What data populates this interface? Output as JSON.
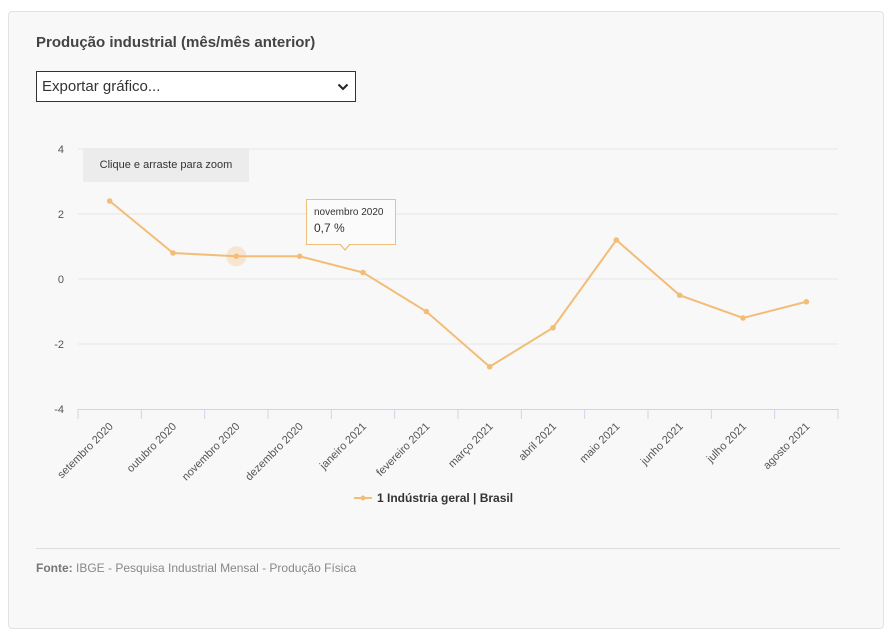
{
  "header": {
    "title": "Produção industrial (mês/mês anterior)"
  },
  "export": {
    "label": "Exportar gráfico..."
  },
  "zoom_hint": "Clique e arraste para zoom",
  "tooltip": {
    "month": "novembro 2020",
    "value": "0,7 %"
  },
  "legend": {
    "label": "1 Indústria geral | Brasil"
  },
  "footer": {
    "source_label": "Fonte:",
    "source_text": "IBGE - Pesquisa Industrial Mensal - Produção Física"
  },
  "colors": {
    "series": "#f2bd77",
    "grid": "#e6e6e6",
    "axis": "#ccd6eb"
  },
  "chart_data": {
    "type": "line",
    "title": "Produção industrial (mês/mês anterior)",
    "xlabel": "",
    "ylabel": "",
    "ylim": [
      -4,
      4
    ],
    "yticks": [
      4,
      2,
      0,
      -2,
      -4
    ],
    "grid": true,
    "legend_position": "bottom",
    "categories": [
      "setembro 2020",
      "outubro 2020",
      "novembro 2020",
      "dezembro 2020",
      "janeiro 2021",
      "fevereiro 2021",
      "março 2021",
      "abril 2021",
      "maio 2021",
      "junho 2021",
      "julho 2021",
      "agosto 2021"
    ],
    "series": [
      {
        "name": "1 Indústria geral | Brasil",
        "values": [
          2.4,
          0.8,
          0.7,
          0.7,
          0.2,
          -1.0,
          -2.7,
          -1.5,
          1.2,
          -0.5,
          -1.2,
          -0.7
        ]
      }
    ],
    "highlighted_index": 2
  }
}
